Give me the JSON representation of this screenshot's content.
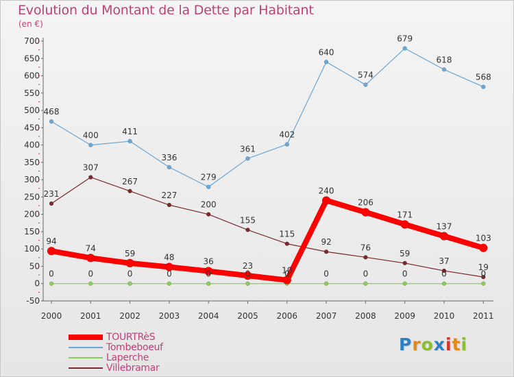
{
  "title": "Evolution du Montant de la Dette par Habitant",
  "unit_label": "(en €)",
  "logo": {
    "text": "Proxiti",
    "letters": [
      {
        "ch": "P",
        "color": "#2d7fc1"
      },
      {
        "ch": "r",
        "color": "#e08a1e"
      },
      {
        "ch": "o",
        "color": "#8cbf2f"
      },
      {
        "ch": "x",
        "color": "#2d7fc1"
      },
      {
        "ch": "i",
        "color": "#d8352a"
      },
      {
        "ch": "t",
        "color": "#e08a1e"
      },
      {
        "ch": "i",
        "color": "#8cbf2f"
      }
    ]
  },
  "chart_data": {
    "type": "line",
    "title": "Evolution du Montant de la Dette par Habitant",
    "ylabel": "(en €)",
    "xlabel": "",
    "ylim": [
      -50,
      700
    ],
    "yticks": [
      -50,
      0,
      50,
      100,
      150,
      200,
      250,
      300,
      350,
      400,
      450,
      500,
      550,
      600,
      650,
      700
    ],
    "grid": false,
    "legend_position": "bottom-left",
    "categories": [
      "2000",
      "2001",
      "2002",
      "2003",
      "2004",
      "2005",
      "2006",
      "2007",
      "2008",
      "2009",
      "2010",
      "2011"
    ],
    "series": [
      {
        "name": "Tombeboeuf",
        "color": "#6aa6d6",
        "values": [
          468,
          400,
          411,
          336,
          279,
          361,
          402,
          640,
          574,
          679,
          618,
          568
        ]
      },
      {
        "name": "Villebramar",
        "color": "#7a2a2a",
        "values": [
          231,
          307,
          267,
          227,
          200,
          155,
          115,
          92,
          76,
          59,
          37,
          19
        ]
      },
      {
        "name": "Laperche",
        "color": "#8ccc5a",
        "values": [
          0,
          0,
          0,
          0,
          0,
          0,
          0,
          0,
          0,
          0,
          0,
          0
        ]
      },
      {
        "name": "TOURTRèS",
        "color": "#ff0000",
        "values": [
          94,
          74,
          59,
          48,
          36,
          23,
          10,
          240,
          206,
          171,
          137,
          103
        ]
      }
    ],
    "legend_order": [
      "TOURTRèS",
      "Tombeboeuf",
      "Laperche",
      "Villebramar"
    ]
  }
}
